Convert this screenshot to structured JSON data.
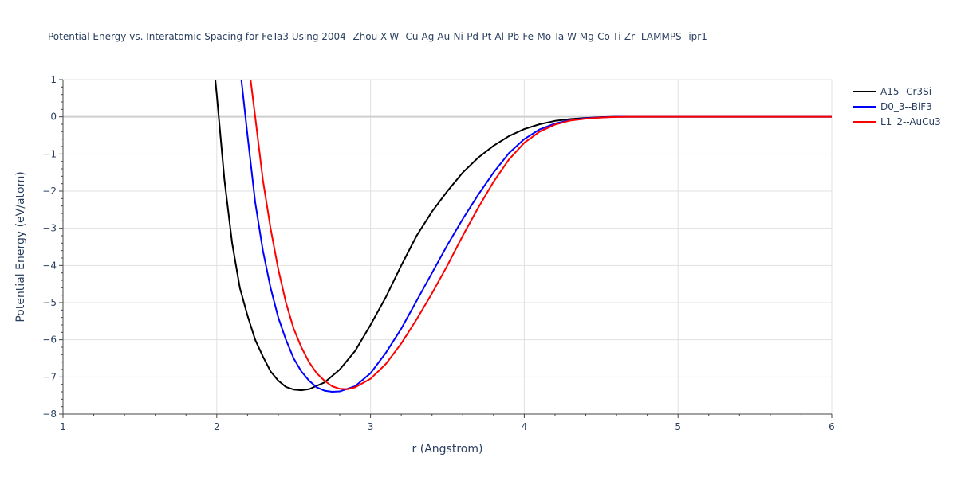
{
  "chart_data": {
    "type": "line",
    "title": "Potential Energy vs. Interatomic Spacing for FeTa3 Using 2004--Zhou-X-W--Cu-Ag-Au-Ni-Pd-Pt-Al-Pb-Fe-Mo-Ta-W-Mg-Co-Ti-Zr--LAMMPS--ipr1",
    "xlabel": "r (Angstrom)",
    "ylabel": "Potential Energy (eV/atom)",
    "xlim": [
      1,
      6
    ],
    "ylim": [
      -8,
      1
    ],
    "x_ticks": [
      1,
      2,
      3,
      4,
      5,
      6
    ],
    "y_ticks": [
      1,
      0,
      -1,
      -2,
      -3,
      -4,
      -5,
      -6,
      -7,
      -8
    ],
    "x_tick_labels": [
      "1",
      "2",
      "3",
      "4",
      "5",
      "6"
    ],
    "y_tick_labels": [
      "1",
      "0",
      "−1",
      "−2",
      "−3",
      "−4",
      "−5",
      "−6",
      "−7",
      "−8"
    ],
    "grid": true,
    "legend_position": "top-right",
    "series": [
      {
        "name": "A15--Cr3Si",
        "color": "#000000",
        "points": [
          [
            1.99,
            1.0
          ],
          [
            2.0,
            0.6
          ],
          [
            2.05,
            -1.7
          ],
          [
            2.1,
            -3.4
          ],
          [
            2.15,
            -4.6
          ],
          [
            2.2,
            -5.35
          ],
          [
            2.25,
            -6.0
          ],
          [
            2.3,
            -6.45
          ],
          [
            2.35,
            -6.85
          ],
          [
            2.4,
            -7.1
          ],
          [
            2.45,
            -7.27
          ],
          [
            2.5,
            -7.34
          ],
          [
            2.55,
            -7.36
          ],
          [
            2.6,
            -7.33
          ],
          [
            2.7,
            -7.15
          ],
          [
            2.8,
            -6.8
          ],
          [
            2.9,
            -6.3
          ],
          [
            3.0,
            -5.6
          ],
          [
            3.1,
            -4.85
          ],
          [
            3.2,
            -4.0
          ],
          [
            3.3,
            -3.2
          ],
          [
            3.4,
            -2.55
          ],
          [
            3.5,
            -2.0
          ],
          [
            3.6,
            -1.5
          ],
          [
            3.7,
            -1.1
          ],
          [
            3.8,
            -0.78
          ],
          [
            3.9,
            -0.52
          ],
          [
            4.0,
            -0.33
          ],
          [
            4.1,
            -0.2
          ],
          [
            4.2,
            -0.11
          ],
          [
            4.3,
            -0.06
          ],
          [
            4.4,
            -0.03
          ],
          [
            4.5,
            -0.01
          ],
          [
            4.6,
            0.0
          ],
          [
            5.0,
            0.0
          ],
          [
            6.0,
            0.0
          ]
        ]
      },
      {
        "name": "D0_3--BiF3",
        "color": "#0000ff",
        "points": [
          [
            2.16,
            1.0
          ],
          [
            2.2,
            -0.5
          ],
          [
            2.25,
            -2.3
          ],
          [
            2.3,
            -3.6
          ],
          [
            2.35,
            -4.6
          ],
          [
            2.4,
            -5.4
          ],
          [
            2.45,
            -6.0
          ],
          [
            2.5,
            -6.5
          ],
          [
            2.55,
            -6.85
          ],
          [
            2.6,
            -7.1
          ],
          [
            2.65,
            -7.28
          ],
          [
            2.7,
            -7.37
          ],
          [
            2.75,
            -7.4
          ],
          [
            2.8,
            -7.39
          ],
          [
            2.9,
            -7.25
          ],
          [
            3.0,
            -6.9
          ],
          [
            3.1,
            -6.35
          ],
          [
            3.2,
            -5.7
          ],
          [
            3.3,
            -4.95
          ],
          [
            3.4,
            -4.2
          ],
          [
            3.5,
            -3.45
          ],
          [
            3.6,
            -2.75
          ],
          [
            3.7,
            -2.1
          ],
          [
            3.8,
            -1.5
          ],
          [
            3.9,
            -0.98
          ],
          [
            4.0,
            -0.6
          ],
          [
            4.1,
            -0.34
          ],
          [
            4.2,
            -0.18
          ],
          [
            4.3,
            -0.09
          ],
          [
            4.4,
            -0.04
          ],
          [
            4.5,
            -0.015
          ],
          [
            4.6,
            0.0
          ],
          [
            5.0,
            0.0
          ],
          [
            6.0,
            0.0
          ]
        ]
      },
      {
        "name": "L1_2--AuCu3",
        "color": "#ff0000",
        "points": [
          [
            2.22,
            1.0
          ],
          [
            2.25,
            0.0
          ],
          [
            2.3,
            -1.7
          ],
          [
            2.35,
            -3.0
          ],
          [
            2.4,
            -4.1
          ],
          [
            2.45,
            -5.0
          ],
          [
            2.5,
            -5.7
          ],
          [
            2.55,
            -6.2
          ],
          [
            2.6,
            -6.6
          ],
          [
            2.65,
            -6.9
          ],
          [
            2.7,
            -7.1
          ],
          [
            2.75,
            -7.25
          ],
          [
            2.8,
            -7.32
          ],
          [
            2.85,
            -7.33
          ],
          [
            2.9,
            -7.28
          ],
          [
            3.0,
            -7.05
          ],
          [
            3.1,
            -6.65
          ],
          [
            3.2,
            -6.1
          ],
          [
            3.3,
            -5.45
          ],
          [
            3.4,
            -4.75
          ],
          [
            3.5,
            -4.0
          ],
          [
            3.6,
            -3.2
          ],
          [
            3.7,
            -2.45
          ],
          [
            3.8,
            -1.75
          ],
          [
            3.9,
            -1.15
          ],
          [
            4.0,
            -0.7
          ],
          [
            4.1,
            -0.4
          ],
          [
            4.2,
            -0.21
          ],
          [
            4.3,
            -0.1
          ],
          [
            4.4,
            -0.05
          ],
          [
            4.5,
            -0.02
          ],
          [
            4.6,
            -0.005
          ],
          [
            4.7,
            0.0
          ],
          [
            5.0,
            0.0
          ],
          [
            6.0,
            0.0
          ]
        ]
      }
    ]
  }
}
